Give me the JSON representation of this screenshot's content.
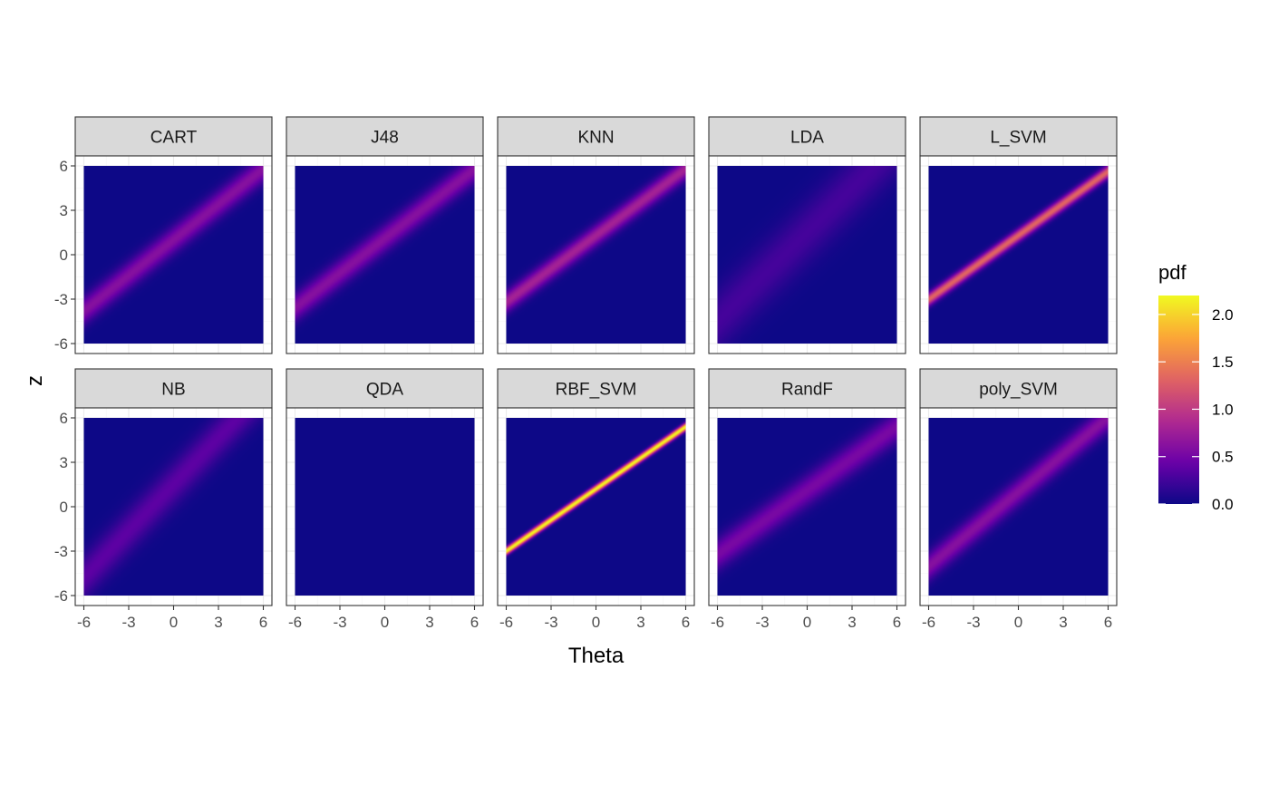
{
  "chart_data": {
    "type": "heatmap",
    "facet_layout": {
      "rows": 2,
      "cols": 5
    },
    "xlabel": "Theta",
    "ylabel": "z",
    "xlim": [
      -6,
      6
    ],
    "ylim": [
      -6,
      6
    ],
    "x_ticks": [
      "-6",
      "-3",
      "0",
      "3",
      "6"
    ],
    "y_ticks": [
      "-6",
      "-3",
      "0",
      "3",
      "6"
    ],
    "grid": true,
    "colorbar": {
      "title": "pdf",
      "ticks": [
        "0.0",
        "0.5",
        "1.0",
        "1.5",
        "2.0"
      ],
      "tick_values": [
        0,
        0.5,
        1.0,
        1.5,
        2.0
      ],
      "range": [
        0,
        2.2
      ],
      "palette": [
        "#0d0887",
        "#6a00a8",
        "#b12a90",
        "#e16462",
        "#fca636",
        "#f0f921"
      ],
      "position": "right"
    },
    "panels": [
      {
        "label": "CART",
        "intercept": 1.0,
        "slope": 0.8,
        "sigma": 0.65
      },
      {
        "label": "J48",
        "intercept": 1.1,
        "slope": 0.78,
        "sigma": 0.65
      },
      {
        "label": "KNN",
        "intercept": 1.3,
        "slope": 0.75,
        "sigma": 0.5
      },
      {
        "label": "LDA",
        "intercept": 1.5,
        "slope": 1.0,
        "sigma": 1.5
      },
      {
        "label": "L_SVM",
        "intercept": 1.3,
        "slope": 0.72,
        "sigma": 0.3
      },
      {
        "label": "NB",
        "intercept": 1.5,
        "slope": 1.05,
        "sigma": 1.05
      },
      {
        "label": "QDA",
        "intercept": 0.0,
        "slope": 0.0,
        "sigma": 100.0
      },
      {
        "label": "RBF_SVM",
        "intercept": 1.2,
        "slope": 0.7,
        "sigma": 0.18
      },
      {
        "label": "RandF",
        "intercept": 1.1,
        "slope": 0.72,
        "sigma": 0.75
      },
      {
        "label": "poly_SVM",
        "intercept": 1.0,
        "slope": 0.84,
        "sigma": 0.65
      }
    ]
  }
}
